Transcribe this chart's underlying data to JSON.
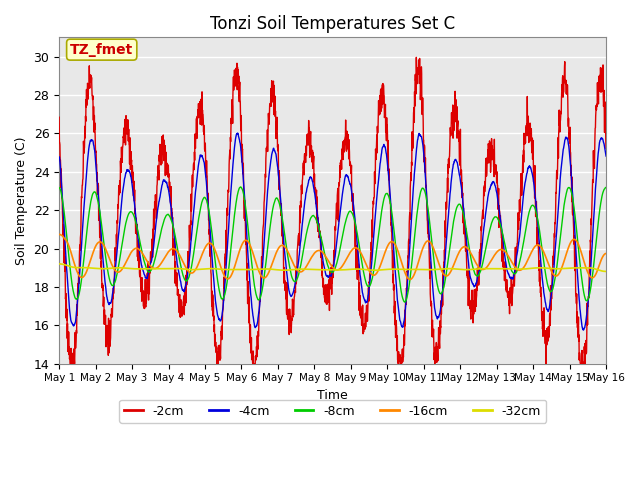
{
  "title": "Tonzi Soil Temperatures Set C",
  "xlabel": "Time",
  "ylabel": "Soil Temperature (C)",
  "annotation": "TZ_fmet",
  "ylim": [
    14,
    31
  ],
  "yticks": [
    14,
    16,
    18,
    20,
    22,
    24,
    26,
    28,
    30
  ],
  "n_days": 15,
  "points_per_day": 144,
  "series_order": [
    "-2cm",
    "-4cm",
    "-8cm",
    "-16cm",
    "-32cm"
  ],
  "colors": {
    "-2cm": "#dd0000",
    "-4cm": "#0000dd",
    "-8cm": "#00cc00",
    "-16cm": "#ff8800",
    "-32cm": "#dddd00"
  },
  "linewidths": {
    "-2cm": 1.0,
    "-4cm": 1.0,
    "-8cm": 1.0,
    "-16cm": 1.2,
    "-32cm": 1.2
  },
  "bg_color": "#e8e8e8",
  "fig_color": "#ffffff",
  "xtick_labels": [
    "May 1",
    "May 2",
    "May 3",
    "May 4",
    "May 5",
    "May 6",
    "May 7",
    "May 8",
    "May 9",
    "May 10",
    "May 11",
    "May 12",
    "May 13",
    "May 14",
    "May 15",
    "May 16"
  ],
  "annotation_bg": "#ffffcc",
  "annotation_fg": "#cc0000",
  "annotation_border": "#aaaa00"
}
